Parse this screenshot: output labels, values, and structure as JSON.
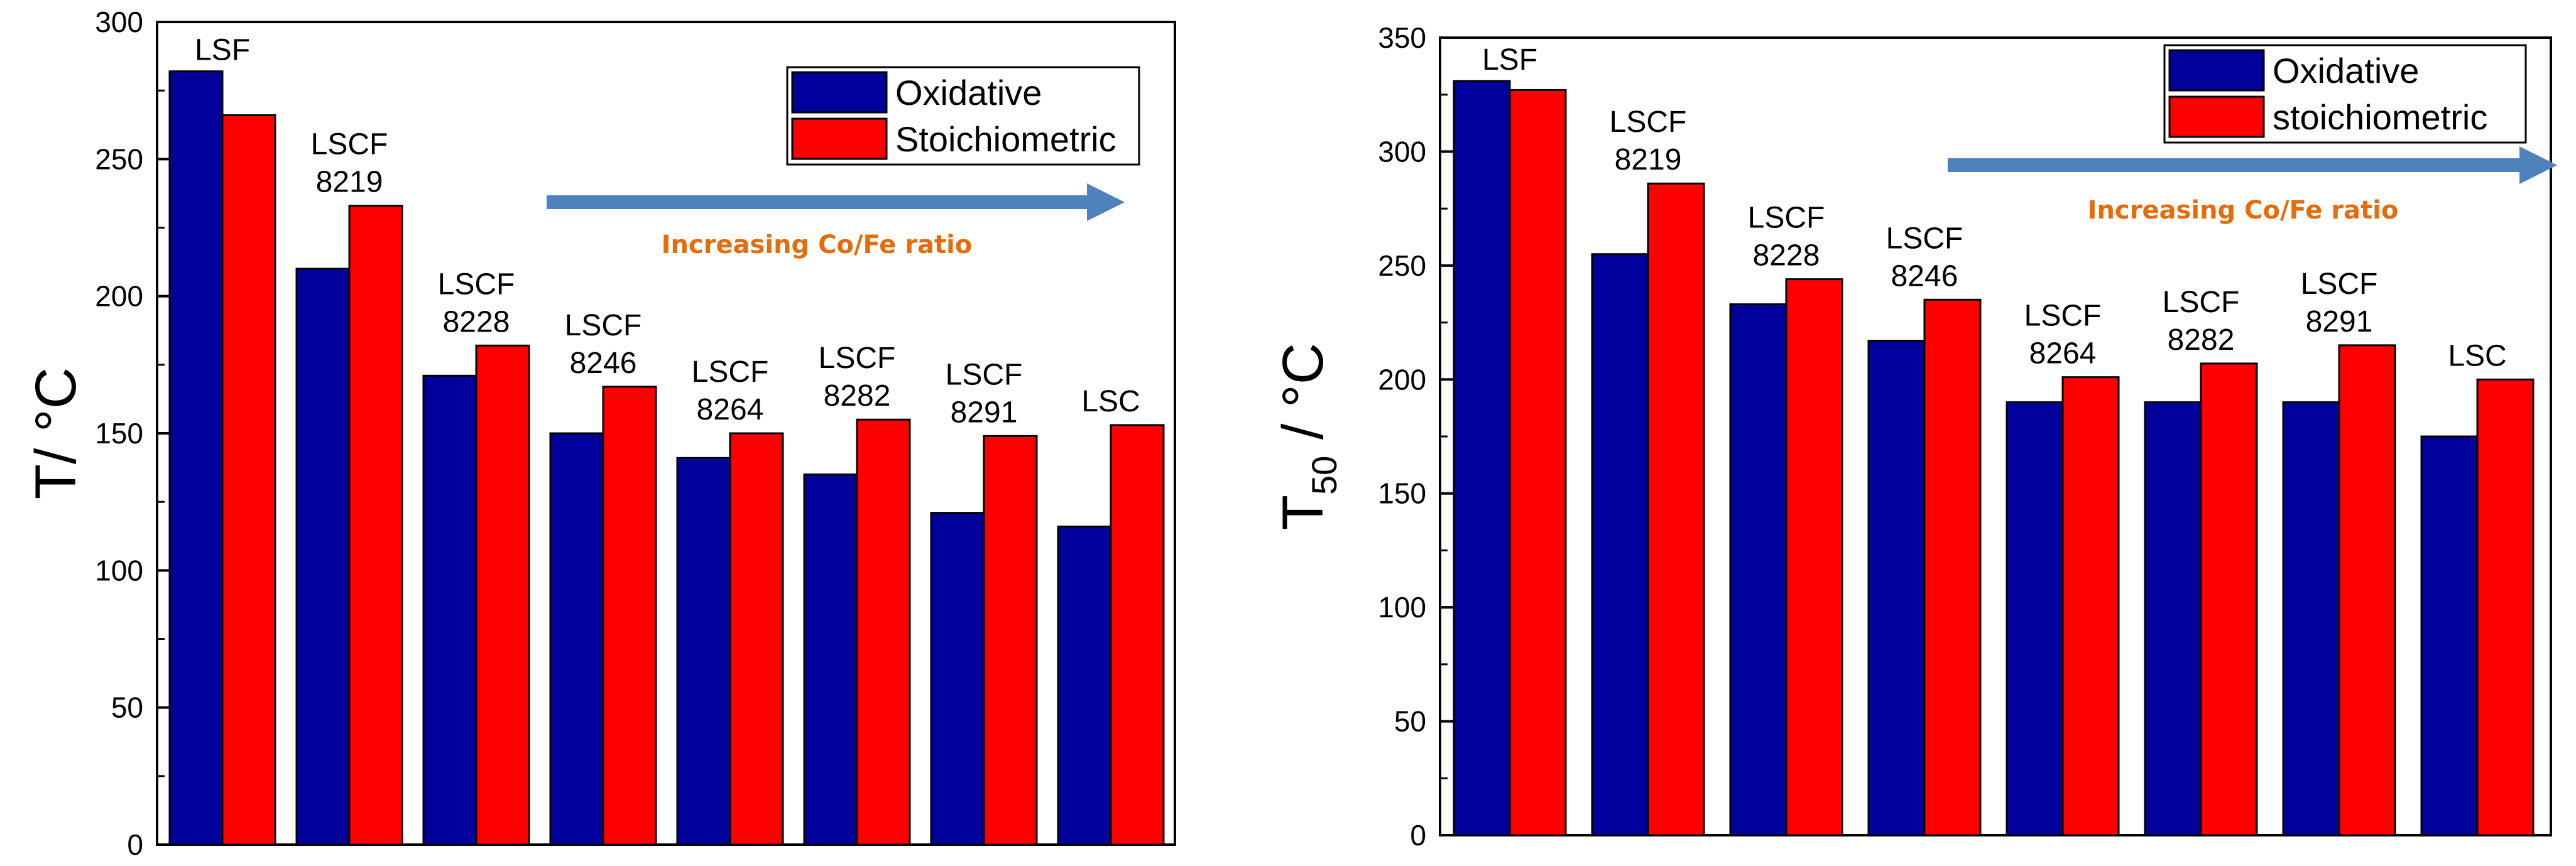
{
  "colors": {
    "oxidative": "#00009b",
    "stoichiometric": "#ff0000",
    "arrow": "#4f81bd",
    "annotation": "#e46c0a"
  },
  "chart_data": [
    {
      "type": "bar",
      "ylabel": "T/ °C",
      "ylim": [
        0,
        300
      ],
      "yticks": [
        "0",
        "50",
        "100",
        "150",
        "200",
        "250",
        "300"
      ],
      "categories": [
        [
          "LSF"
        ],
        [
          "LSCF",
          "8219"
        ],
        [
          "LSCF",
          "8228"
        ],
        [
          "LSCF",
          "8246"
        ],
        [
          "LSCF",
          "8264"
        ],
        [
          "LSCF",
          "8282"
        ],
        [
          "LSCF",
          "8291"
        ],
        [
          "LSC"
        ]
      ],
      "series": [
        {
          "name": "Oxidative",
          "values": [
            282,
            210,
            171,
            150,
            141,
            135,
            121,
            116
          ]
        },
        {
          "name": "Stoichiometric",
          "values": [
            266,
            233,
            182,
            167,
            150,
            155,
            149,
            153
          ]
        }
      ],
      "annotation": "Increasing Co/Fe ratio",
      "legend": "top-right"
    },
    {
      "type": "bar",
      "ylabel_main": "T",
      "ylabel_sub": "50",
      "ylabel_rest": " / °C",
      "ylim": [
        0,
        350
      ],
      "yticks": [
        "0",
        "50",
        "100",
        "150",
        "200",
        "250",
        "300",
        "350"
      ],
      "categories": [
        [
          "LSF"
        ],
        [
          "LSCF",
          "8219"
        ],
        [
          "LSCF",
          "8228"
        ],
        [
          "LSCF",
          "8246"
        ],
        [
          "LSCF",
          "8264"
        ],
        [
          "LSCF",
          "8282"
        ],
        [
          "LSCF",
          "8291"
        ],
        [
          "LSC"
        ]
      ],
      "series": [
        {
          "name": "Oxidative",
          "values": [
            331,
            255,
            233,
            217,
            190,
            190,
            190,
            175
          ]
        },
        {
          "name": "stoichiometric",
          "values": [
            327,
            286,
            244,
            235,
            201,
            207,
            215,
            200
          ]
        }
      ],
      "annotation": "Increasing Co/Fe ratio",
      "legend": "top-right"
    }
  ]
}
